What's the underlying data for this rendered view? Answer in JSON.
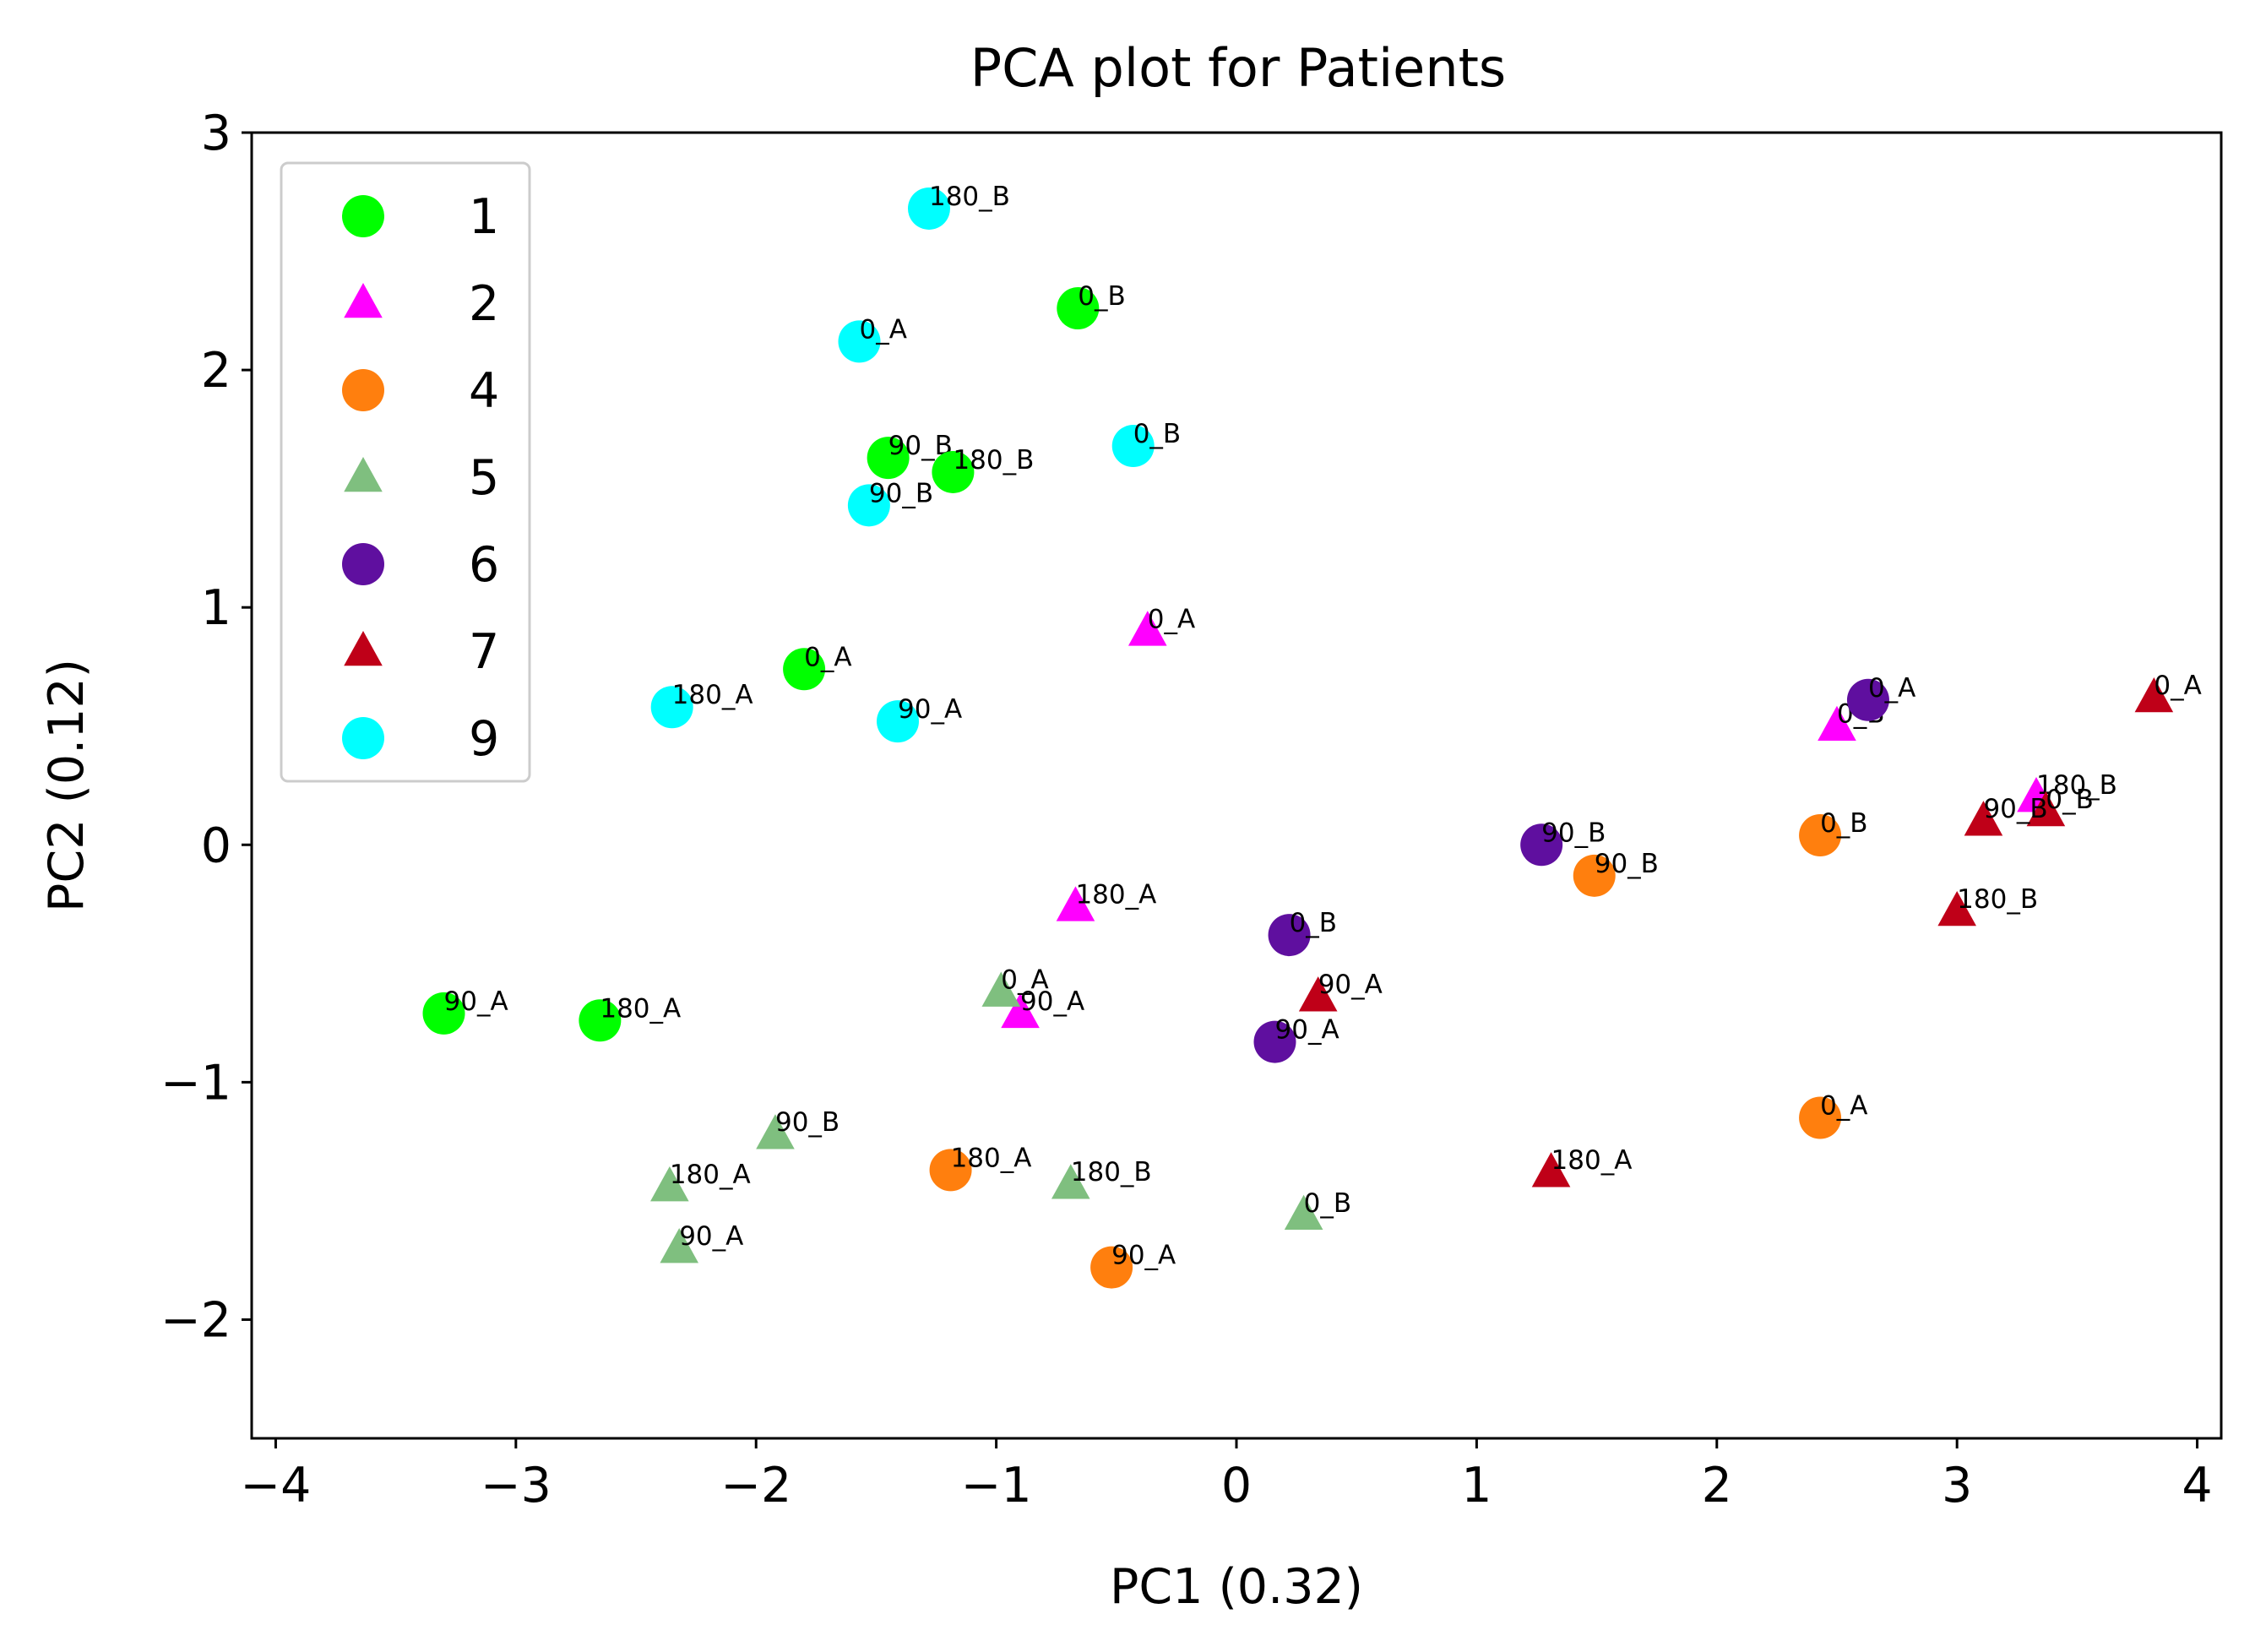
{
  "chart_data": {
    "type": "scatter",
    "title": "PCA plot for Patients",
    "xlabel": "PC1 (0.32)",
    "ylabel": "PC2 (0.12)",
    "xlim": [
      -4.1,
      4.1
    ],
    "ylim": [
      -2.5,
      3.0
    ],
    "xticks": [
      -4,
      -3,
      -2,
      -1,
      0,
      1,
      2,
      3,
      4
    ],
    "xtick_labels": [
      "−4",
      "−3",
      "−2",
      "−1",
      "0",
      "1",
      "2",
      "3",
      "4"
    ],
    "yticks": [
      -2,
      -1,
      0,
      1,
      2,
      3
    ],
    "ytick_labels": [
      "−2",
      "−1",
      "0",
      "1",
      "2",
      "3"
    ],
    "grid": false,
    "legend_position": "top-left",
    "series": [
      {
        "name": "1",
        "marker": "circle",
        "color": "#00ff00",
        "points": [
          {
            "x": -0.66,
            "y": 2.26,
            "label": "0_B"
          },
          {
            "x": -1.45,
            "y": 1.63,
            "label": "90_B"
          },
          {
            "x": -1.18,
            "y": 1.57,
            "label": "180_B"
          },
          {
            "x": -1.8,
            "y": 0.74,
            "label": "0_A"
          },
          {
            "x": -3.3,
            "y": -0.71,
            "label": "90_A"
          },
          {
            "x": -2.65,
            "y": -0.74,
            "label": "180_A"
          }
        ]
      },
      {
        "name": "2",
        "marker": "triangle",
        "color": "#ff00ff",
        "points": [
          {
            "x": -0.37,
            "y": 0.9,
            "label": "0_A"
          },
          {
            "x": 2.5,
            "y": 0.5,
            "label": "0_B"
          },
          {
            "x": 3.33,
            "y": 0.2,
            "label": "180_B"
          },
          {
            "x": -0.67,
            "y": -0.26,
            "label": "180_A"
          },
          {
            "x": -0.9,
            "y": -0.71,
            "label": "90_A"
          }
        ]
      },
      {
        "name": "4",
        "marker": "circle",
        "color": "#ff7f0e",
        "points": [
          {
            "x": 2.43,
            "y": 0.04,
            "label": "0_B"
          },
          {
            "x": 1.49,
            "y": -0.13,
            "label": "90_B"
          },
          {
            "x": 2.43,
            "y": -1.15,
            "label": "0_A"
          },
          {
            "x": -1.19,
            "y": -1.37,
            "label": "180_A"
          },
          {
            "x": -0.52,
            "y": -1.78,
            "label": "90_A"
          }
        ]
      },
      {
        "name": "5",
        "marker": "triangle",
        "color": "#7fbf7f",
        "points": [
          {
            "x": -0.98,
            "y": -0.62,
            "label": "0_A"
          },
          {
            "x": -1.92,
            "y": -1.22,
            "label": "90_B"
          },
          {
            "x": -2.36,
            "y": -1.44,
            "label": "180_A"
          },
          {
            "x": -0.69,
            "y": -1.43,
            "label": "180_B"
          },
          {
            "x": 0.28,
            "y": -1.56,
            "label": "0_B"
          },
          {
            "x": -2.32,
            "y": -1.7,
            "label": "90_A"
          }
        ]
      },
      {
        "name": "6",
        "marker": "circle",
        "color": "#5f0f9f",
        "points": [
          {
            "x": 2.63,
            "y": 0.61,
            "label": "0_A"
          },
          {
            "x": 1.27,
            "y": 0.0,
            "label": "90_B"
          },
          {
            "x": 0.22,
            "y": -0.38,
            "label": "0_B"
          },
          {
            "x": 0.16,
            "y": -0.83,
            "label": "90_A"
          }
        ]
      },
      {
        "name": "7",
        "marker": "triangle",
        "color": "#bf0018",
        "points": [
          {
            "x": 3.82,
            "y": 0.62,
            "label": "0_A"
          },
          {
            "x": 3.37,
            "y": 0.14,
            "label": "0_B"
          },
          {
            "x": 3.11,
            "y": 0.1,
            "label": "90_B"
          },
          {
            "x": 3.0,
            "y": -0.28,
            "label": "180_B"
          },
          {
            "x": 0.34,
            "y": -0.64,
            "label": "90_A"
          },
          {
            "x": 1.31,
            "y": -1.38,
            "label": "180_A"
          }
        ]
      },
      {
        "name": "9",
        "marker": "circle",
        "color": "#00ffff",
        "points": [
          {
            "x": -1.28,
            "y": 2.68,
            "label": "180_B"
          },
          {
            "x": -1.57,
            "y": 2.12,
            "label": "0_A"
          },
          {
            "x": -0.43,
            "y": 1.68,
            "label": "0_B"
          },
          {
            "x": -1.53,
            "y": 1.43,
            "label": "90_B"
          },
          {
            "x": -2.35,
            "y": 0.58,
            "label": "180_A"
          },
          {
            "x": -1.41,
            "y": 0.52,
            "label": "90_A"
          }
        ]
      }
    ]
  }
}
